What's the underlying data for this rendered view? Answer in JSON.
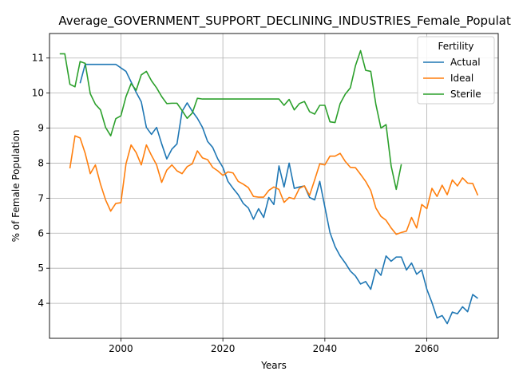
{
  "chart_data": {
    "type": "line",
    "title": "Average_GOVERNMENT_SUPPORT_DECLINING_INDUSTRIES_Female_Population",
    "xlabel": "Years",
    "ylabel": "% of Female Population",
    "xlim": [
      1986,
      2074
    ],
    "ylim": [
      3.0,
      11.7
    ],
    "xticks": [
      2000,
      2020,
      2040,
      2060
    ],
    "yticks": [
      4,
      5,
      6,
      7,
      8,
      9,
      10,
      11
    ],
    "grid": true,
    "legend": {
      "title": "Fertility",
      "placement": "top-right"
    },
    "series": [
      {
        "name": "Actual",
        "color": "#1f77b4",
        "x": [
          1992,
          1993,
          1994,
          1995,
          1996,
          1997,
          1998,
          1999,
          2000,
          2001,
          2002,
          2003,
          2004,
          2005,
          2006,
          2007,
          2008,
          2009,
          2010,
          2011,
          2012,
          2013,
          2014,
          2015,
          2016,
          2017,
          2018,
          2019,
          2020,
          2021,
          2022,
          2023,
          2024,
          2025,
          2026,
          2027,
          2028,
          2029,
          2030,
          2031,
          2032,
          2033,
          2034,
          2035,
          2036,
          2037,
          2038,
          2039,
          2040,
          2041,
          2042,
          2043,
          2044,
          2045,
          2046,
          2047,
          2048,
          2049,
          2050,
          2051,
          2052,
          2053,
          2054,
          2055,
          2056,
          2057,
          2058,
          2059,
          2060,
          2061,
          2062,
          2063,
          2064,
          2065,
          2066,
          2067,
          2068,
          2069,
          2070
        ],
        "y": [
          10.28,
          10.82,
          10.82,
          10.82,
          10.82,
          10.82,
          10.82,
          10.82,
          10.72,
          10.62,
          10.32,
          10.02,
          9.75,
          9.02,
          8.82,
          9.02,
          8.55,
          8.12,
          8.4,
          8.55,
          9.48,
          9.72,
          9.48,
          9.28,
          9.02,
          8.62,
          8.45,
          8.12,
          7.88,
          7.48,
          7.28,
          7.1,
          6.85,
          6.72,
          6.4,
          6.7,
          6.45,
          7.02,
          6.82,
          7.92,
          7.32,
          8.0,
          7.28,
          7.32,
          7.35,
          7.02,
          6.95,
          7.48,
          6.75,
          6.02,
          5.62,
          5.35,
          5.15,
          4.92,
          4.78,
          4.55,
          4.62,
          4.4,
          4.97,
          4.8,
          5.35,
          5.2,
          5.32,
          5.32,
          4.95,
          5.15,
          4.83,
          4.95,
          4.4,
          4.02,
          3.58,
          3.65,
          3.42,
          3.75,
          3.7,
          3.9,
          3.76,
          4.25,
          4.14
        ]
      },
      {
        "name": "Ideal",
        "color": "#ff7f0e",
        "x": [
          1990,
          1991,
          1992,
          1993,
          1994,
          1995,
          1996,
          1997,
          1998,
          1999,
          2000,
          2001,
          2002,
          2003,
          2004,
          2005,
          2006,
          2007,
          2008,
          2009,
          2010,
          2011,
          2012,
          2013,
          2014,
          2015,
          2016,
          2017,
          2018,
          2019,
          2020,
          2021,
          2022,
          2023,
          2024,
          2025,
          2026,
          2027,
          2028,
          2029,
          2030,
          2031,
          2032,
          2033,
          2034,
          2035,
          2036,
          2037,
          2038,
          2039,
          2040,
          2041,
          2042,
          2043,
          2044,
          2045,
          2046,
          2047,
          2048,
          2049,
          2050,
          2051,
          2052,
          2053,
          2054,
          2055,
          2056,
          2057,
          2058,
          2059,
          2060,
          2061,
          2062,
          2063,
          2064,
          2065,
          2066,
          2067,
          2068,
          2069,
          2070
        ],
        "y": [
          7.85,
          8.78,
          8.72,
          8.28,
          7.7,
          7.95,
          7.4,
          6.95,
          6.63,
          6.85,
          6.87,
          7.98,
          8.52,
          8.3,
          7.95,
          8.52,
          8.22,
          7.95,
          7.45,
          7.8,
          7.95,
          7.78,
          7.7,
          7.9,
          7.98,
          8.35,
          8.15,
          8.1,
          7.88,
          7.78,
          7.65,
          7.75,
          7.72,
          7.48,
          7.4,
          7.3,
          7.05,
          7.03,
          7.03,
          7.22,
          7.32,
          7.25,
          6.88,
          7.02,
          6.98,
          7.28,
          7.35,
          7.08,
          7.52,
          7.98,
          7.95,
          8.2,
          8.2,
          8.28,
          8.05,
          7.88,
          7.87,
          7.68,
          7.48,
          7.22,
          6.72,
          6.48,
          6.37,
          6.15,
          5.97,
          6.02,
          6.06,
          6.45,
          6.15,
          6.82,
          6.7,
          7.28,
          7.05,
          7.37,
          7.1,
          7.52,
          7.35,
          7.58,
          7.43,
          7.42,
          7.08
        ]
      },
      {
        "name": "Sterile",
        "color": "#2ca02c",
        "x": [
          1988,
          1989,
          1990,
          1991,
          1992,
          1993,
          1994,
          1995,
          1996,
          1997,
          1998,
          1999,
          2000,
          2001,
          2002,
          2003,
          2004,
          2005,
          2006,
          2007,
          2008,
          2009,
          2010,
          2011,
          2012,
          2013,
          2014,
          2015,
          2016,
          2017,
          2018,
          2019,
          2020,
          2021,
          2022,
          2023,
          2024,
          2025,
          2026,
          2027,
          2028,
          2029,
          2030,
          2031,
          2032,
          2033,
          2034,
          2035,
          2036,
          2037,
          2038,
          2039,
          2040,
          2041,
          2042,
          2043,
          2044,
          2045,
          2046,
          2047,
          2048,
          2049,
          2050,
          2051,
          2052,
          2053,
          2054,
          2055
        ],
        "y": [
          11.12,
          11.12,
          10.25,
          10.18,
          10.9,
          10.85,
          9.98,
          9.68,
          9.52,
          9.02,
          8.78,
          9.27,
          9.35,
          9.9,
          10.27,
          10.08,
          10.52,
          10.62,
          10.35,
          10.15,
          9.9,
          9.7,
          9.71,
          9.71,
          9.5,
          9.28,
          9.43,
          9.85,
          9.83,
          9.83,
          9.83,
          9.83,
          9.83,
          9.83,
          9.83,
          9.83,
          9.83,
          9.83,
          9.83,
          9.83,
          9.83,
          9.83,
          9.83,
          9.83,
          9.65,
          9.82,
          9.52,
          9.7,
          9.76,
          9.47,
          9.4,
          9.65,
          9.65,
          9.18,
          9.16,
          9.7,
          9.97,
          10.15,
          10.78,
          11.21,
          10.65,
          10.62,
          9.68,
          9.0,
          9.1,
          7.92,
          7.25,
          7.97
        ]
      }
    ]
  }
}
